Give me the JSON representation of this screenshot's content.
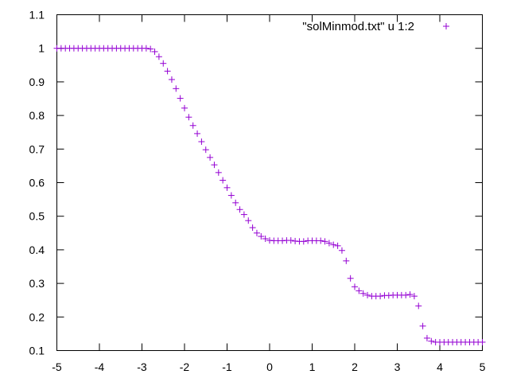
{
  "chart_data": {
    "type": "scatter",
    "title": "",
    "xlabel": "",
    "ylabel": "",
    "xlim": [
      -5,
      5
    ],
    "ylim": [
      0.1,
      1.1
    ],
    "xticks": [
      -5,
      -4,
      -3,
      -2,
      -1,
      0,
      1,
      2,
      3,
      4,
      5
    ],
    "yticks": [
      0.1,
      0.2,
      0.3,
      0.4,
      0.5,
      0.6,
      0.7,
      0.8,
      0.9,
      1,
      1.1
    ],
    "xtick_labels": [
      "-5",
      "-4",
      "-3",
      "-2",
      "-1",
      "0",
      "1",
      "2",
      "3",
      "4",
      "5"
    ],
    "ytick_labels": [
      "0.1",
      "0.2",
      "0.3",
      "0.4",
      "0.5",
      "0.6",
      "0.7",
      "0.8",
      "0.9",
      "1",
      "1.1"
    ],
    "grid": false,
    "legend_position": "top-right",
    "marker": "plus",
    "color": "#9400d3",
    "series": [
      {
        "name": "\"solMinmod.txt\" u 1:2",
        "x": [
          -5.0,
          -4.9,
          -4.8,
          -4.7,
          -4.6,
          -4.5,
          -4.4,
          -4.3,
          -4.2,
          -4.1,
          -4.0,
          -3.9,
          -3.8,
          -3.7,
          -3.6,
          -3.5,
          -3.4,
          -3.3,
          -3.2,
          -3.1,
          -3.0,
          -2.9,
          -2.8,
          -2.7,
          -2.6,
          -2.5,
          -2.4,
          -2.3,
          -2.2,
          -2.1,
          -2.0,
          -1.9,
          -1.8,
          -1.7,
          -1.6,
          -1.5,
          -1.4,
          -1.3,
          -1.2,
          -1.1,
          -1.0,
          -0.9,
          -0.8,
          -0.7,
          -0.6,
          -0.5,
          -0.4,
          -0.3,
          -0.2,
          -0.1,
          0.0,
          0.1,
          0.2,
          0.3,
          0.4,
          0.5,
          0.6,
          0.7,
          0.8,
          0.9,
          1.0,
          1.1,
          1.2,
          1.3,
          1.4,
          1.5,
          1.6,
          1.7,
          1.8,
          1.9,
          2.0,
          2.1,
          2.2,
          2.3,
          2.4,
          2.5,
          2.6,
          2.7,
          2.8,
          2.9,
          3.0,
          3.1,
          3.2,
          3.3,
          3.4,
          3.5,
          3.6,
          3.7,
          3.8,
          3.9,
          4.0,
          4.1,
          4.2,
          4.3,
          4.4,
          4.5,
          4.6,
          4.7,
          4.8,
          4.9,
          5.0
        ],
        "y": [
          1.0,
          1.0,
          1.0,
          1.0,
          1.0,
          1.0,
          1.0,
          1.0,
          1.0,
          1.0,
          1.0,
          1.0,
          1.0,
          1.0,
          1.0,
          1.0,
          1.0,
          1.0,
          1.0,
          1.0,
          1.0,
          1.0,
          0.998,
          0.99,
          0.975,
          0.955,
          0.932,
          0.907,
          0.88,
          0.851,
          0.822,
          0.795,
          0.77,
          0.746,
          0.722,
          0.698,
          0.675,
          0.653,
          0.63,
          0.607,
          0.585,
          0.562,
          0.54,
          0.52,
          0.505,
          0.487,
          0.466,
          0.45,
          0.44,
          0.433,
          0.428,
          0.427,
          0.427,
          0.427,
          0.428,
          0.428,
          0.426,
          0.425,
          0.425,
          0.427,
          0.427,
          0.427,
          0.427,
          0.425,
          0.42,
          0.415,
          0.412,
          0.398,
          0.367,
          0.315,
          0.29,
          0.278,
          0.27,
          0.265,
          0.262,
          0.262,
          0.262,
          0.264,
          0.264,
          0.265,
          0.265,
          0.265,
          0.265,
          0.267,
          0.262,
          0.233,
          0.173,
          0.137,
          0.128,
          0.125,
          0.125,
          0.125,
          0.125,
          0.125,
          0.125,
          0.125,
          0.125,
          0.125,
          0.125,
          0.125,
          0.125
        ]
      }
    ]
  }
}
